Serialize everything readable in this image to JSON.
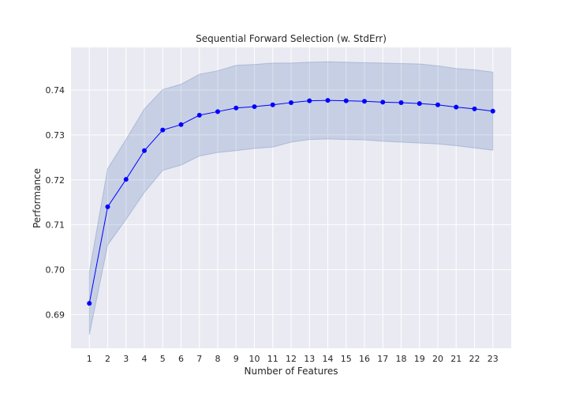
{
  "chart_data": {
    "type": "line",
    "title": "Sequential Forward Selection (w. StdErr)",
    "xlabel": "Number of Features",
    "ylabel": "Performance",
    "x": [
      1,
      2,
      3,
      4,
      5,
      6,
      7,
      8,
      9,
      10,
      11,
      12,
      13,
      14,
      15,
      16,
      17,
      18,
      19,
      20,
      21,
      22,
      23
    ],
    "y": [
      0.6925,
      0.714,
      0.7201,
      0.7265,
      0.7311,
      0.7323,
      0.7344,
      0.7352,
      0.736,
      0.7363,
      0.7367,
      0.7372,
      0.7376,
      0.7377,
      0.7376,
      0.7375,
      0.7373,
      0.7372,
      0.737,
      0.7367,
      0.7362,
      0.7358,
      0.7353
    ],
    "y_upper": [
      0.6995,
      0.7225,
      0.729,
      0.7358,
      0.7401,
      0.7413,
      0.7435,
      0.7443,
      0.7455,
      0.7457,
      0.746,
      0.746,
      0.7462,
      0.7463,
      0.7462,
      0.7461,
      0.746,
      0.7459,
      0.7458,
      0.7454,
      0.7448,
      0.7445,
      0.744
    ],
    "y_lower": [
      0.6855,
      0.7055,
      0.7112,
      0.7172,
      0.7221,
      0.7233,
      0.7253,
      0.7261,
      0.7265,
      0.727,
      0.7273,
      0.7284,
      0.729,
      0.7291,
      0.729,
      0.7289,
      0.7286,
      0.7284,
      0.7282,
      0.728,
      0.7276,
      0.7271,
      0.7266
    ],
    "xticks": [
      1,
      2,
      3,
      4,
      5,
      6,
      7,
      8,
      9,
      10,
      11,
      12,
      13,
      14,
      15,
      16,
      17,
      18,
      19,
      20,
      21,
      22,
      23
    ],
    "yticks": [
      0.69,
      0.7,
      0.71,
      0.72,
      0.73,
      0.74
    ],
    "ytick_labels": [
      "0.69",
      "0.70",
      "0.71",
      "0.72",
      "0.73",
      "0.74"
    ],
    "xlim": [
      0,
      24
    ],
    "ylim": [
      0.6825,
      0.7495
    ],
    "grid": true,
    "colors": {
      "line": "#0000ff",
      "marker": "#0000ff",
      "band_fill": "#4c72b0",
      "band_edge": "#4c72b0",
      "plot_bg": "#eaeaf2",
      "grid": "#ffffff"
    }
  }
}
